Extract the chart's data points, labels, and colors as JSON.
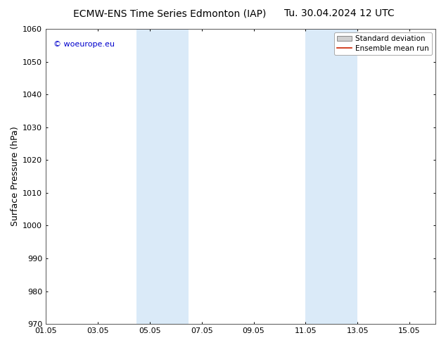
{
  "title_left": "ECMW-ENS Time Series Edmonton (IAP)",
  "title_right": "Tu. 30.04.2024 12 UTC",
  "ylabel": "Surface Pressure (hPa)",
  "ylim": [
    970,
    1060
  ],
  "yticks": [
    970,
    980,
    990,
    1000,
    1010,
    1020,
    1030,
    1040,
    1050,
    1060
  ],
  "xtick_labels": [
    "01.05",
    "03.05",
    "05.05",
    "07.05",
    "09.05",
    "11.05",
    "13.05",
    "15.05"
  ],
  "xtick_positions": [
    0,
    2,
    4,
    6,
    8,
    10,
    12,
    14
  ],
  "xlim": [
    0,
    15
  ],
  "shade_regions": [
    {
      "start": 3.5,
      "end": 5.5
    },
    {
      "start": 10.0,
      "end": 12.0
    }
  ],
  "shade_color": "#daeaf8",
  "watermark_text": "© woeurope.eu",
  "watermark_color": "#0000cc",
  "legend_std_label": "Standard deviation",
  "legend_mean_label": "Ensemble mean run",
  "legend_std_facecolor": "#d0d0d0",
  "legend_std_edgecolor": "#888888",
  "legend_mean_color": "#cc2200",
  "background_color": "#ffffff",
  "axes_background": "#ffffff",
  "spine_color": "#555555",
  "title_fontsize": 10,
  "tick_fontsize": 8,
  "ylabel_fontsize": 9,
  "watermark_fontsize": 8,
  "legend_fontsize": 7.5
}
